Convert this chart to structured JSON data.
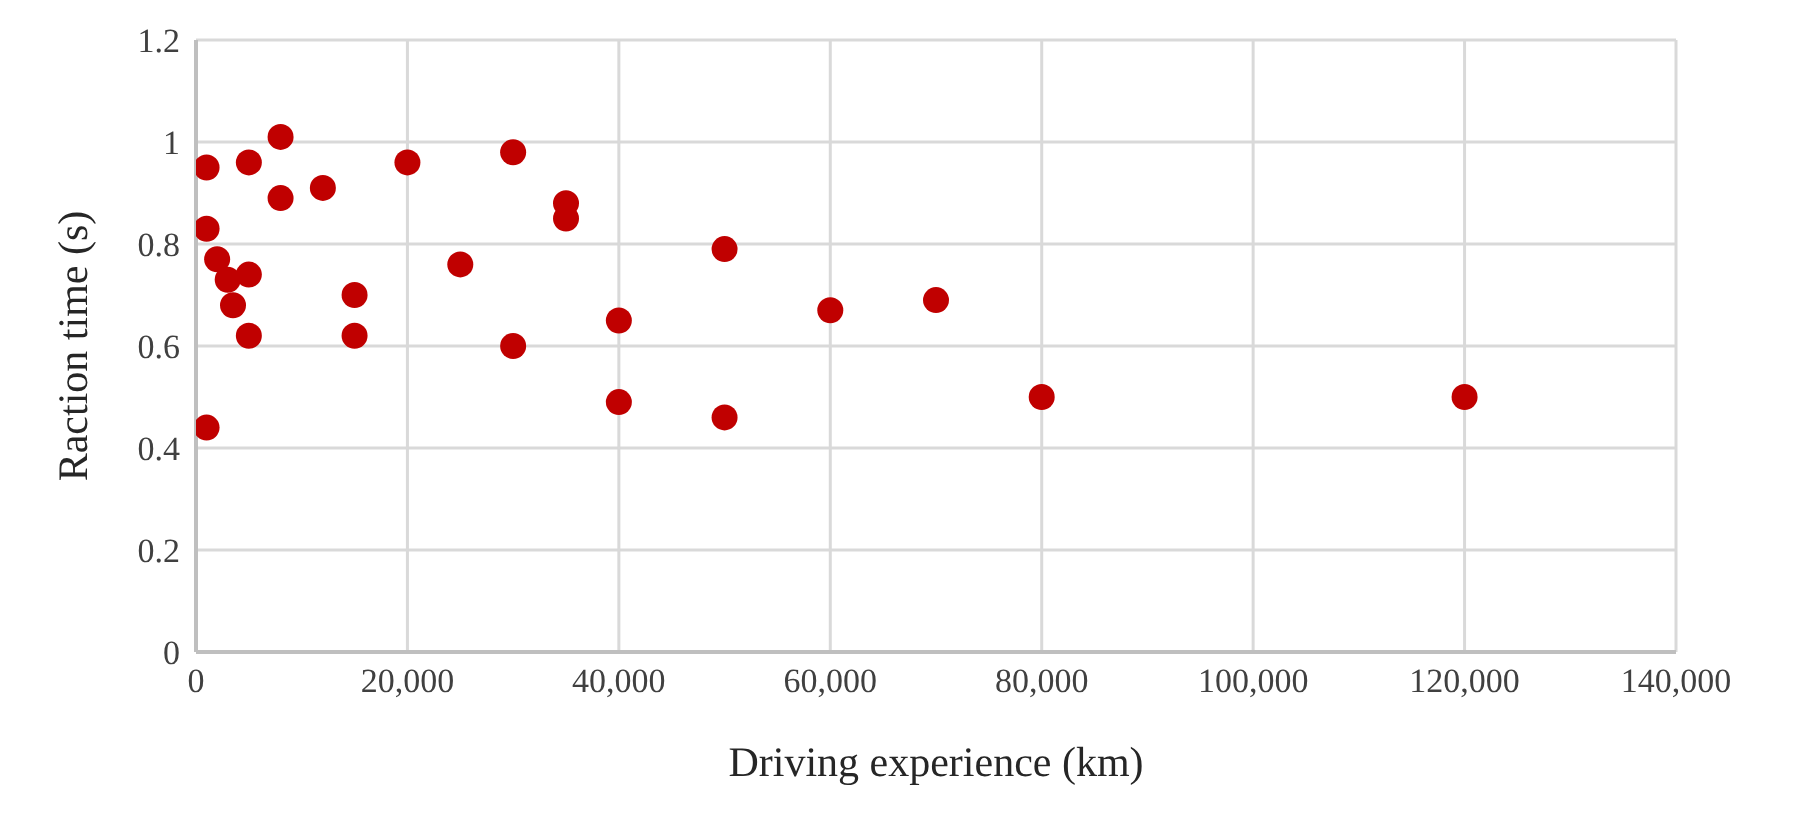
{
  "chart_data": {
    "type": "scatter",
    "xlabel": "Driving experience (km)",
    "ylabel": "Raction time (s)",
    "x": [
      1000,
      1000,
      1000,
      2000,
      3000,
      3500,
      5000,
      5000,
      5000,
      8000,
      8000,
      12000,
      15000,
      15000,
      20000,
      25000,
      30000,
      30000,
      35000,
      35000,
      40000,
      40000,
      50000,
      50000,
      60000,
      70000,
      80000,
      120000
    ],
    "series": [
      {
        "color": "#c00000",
        "values": [
          0.95,
          0.83,
          0.44,
          0.77,
          0.73,
          0.68,
          0.74,
          0.62,
          0.96,
          1.01,
          0.89,
          0.91,
          0.7,
          0.62,
          0.96,
          0.76,
          0.98,
          0.6,
          0.88,
          0.85,
          0.65,
          0.49,
          0.79,
          0.46,
          0.67,
          0.69,
          0.5,
          0.5
        ]
      }
    ],
    "xlim": [
      0,
      140000
    ],
    "xticks": [
      {
        "value": 0,
        "label": "0"
      },
      {
        "value": 20000,
        "label": "20,000"
      },
      {
        "value": 40000,
        "label": "40,000"
      },
      {
        "value": 60000,
        "label": "60,000"
      },
      {
        "value": 80000,
        "label": "80,000"
      },
      {
        "value": 100000,
        "label": "100,000"
      },
      {
        "value": 120000,
        "label": "120,000"
      },
      {
        "value": 140000,
        "label": "140,000"
      }
    ],
    "ylim": [
      0,
      1.2
    ],
    "yticks": [
      0,
      0.2,
      0.4,
      0.6,
      0.8,
      1,
      1.2
    ],
    "grid": true,
    "marker": "circle"
  }
}
